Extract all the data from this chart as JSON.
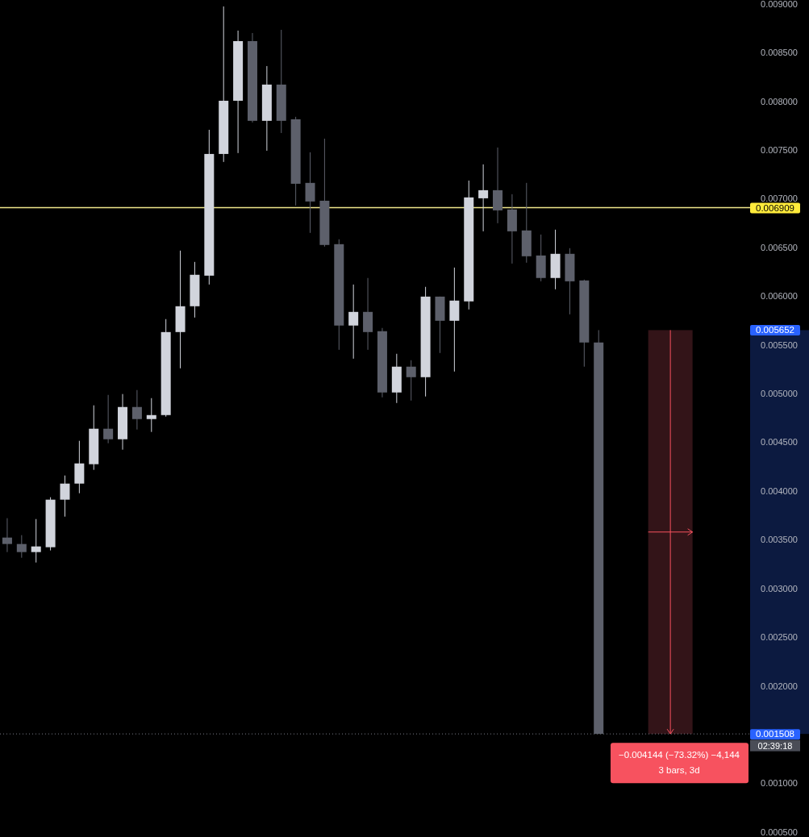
{
  "chart_data": {
    "type": "candlestick",
    "categories": [
      null,
      null,
      null,
      null,
      null,
      null,
      null,
      null,
      null,
      null,
      null,
      null,
      null,
      null,
      null,
      null,
      null,
      null,
      null,
      null,
      null,
      null,
      null,
      null,
      null,
      null,
      null,
      null,
      null,
      null,
      null,
      null,
      null,
      null,
      null,
      null,
      null,
      null,
      null,
      null,
      null,
      null,
      null,
      null,
      null,
      null,
      null,
      null,
      null,
      null,
      null,
      null
    ],
    "ohlc": [
      [
        0.003523,
        0.003722,
        0.003374,
        0.003457
      ],
      [
        0.003457,
        0.003548,
        0.003316,
        0.003374
      ],
      [
        0.003374,
        0.003713,
        0.003267,
        0.003432
      ],
      [
        0.003424,
        0.003937,
        0.003391,
        0.003912
      ],
      [
        0.003912,
        0.00416,
        0.003738,
        0.004077
      ],
      [
        0.004077,
        0.004516,
        0.003978,
        0.004284
      ],
      [
        0.004276,
        0.00488,
        0.004218,
        0.00464
      ],
      [
        0.00464,
        0.004987,
        0.004491,
        0.004532
      ],
      [
        0.004532,
        0.004996,
        0.004425,
        0.004863
      ],
      [
        0.004863,
        0.005037,
        0.004632,
        0.004739
      ],
      [
        0.004739,
        0.004954,
        0.004607,
        0.00478
      ],
      [
        0.00478,
        0.005765,
        0.004764,
        0.005632
      ],
      [
        0.005632,
        0.006468,
        0.00526,
        0.005897
      ],
      [
        0.005897,
        0.006352,
        0.005781,
        0.00622
      ],
      [
        0.006211,
        0.007708,
        0.00612,
        0.00746
      ],
      [
        0.00746,
        0.008974,
        0.007378,
        0.008006
      ],
      [
        0.008006,
        0.008726,
        0.007469,
        0.008618
      ],
      [
        0.008618,
        0.008701,
        0.007783,
        0.0078
      ],
      [
        0.0078,
        0.008362,
        0.007493,
        0.008172
      ],
      [
        0.008172,
        0.008734,
        0.007675,
        0.0078
      ],
      [
        0.007816,
        0.007841,
        0.006931,
        0.007154
      ],
      [
        0.007163,
        0.007477,
        0.00665,
        0.006972
      ],
      [
        0.00698,
        0.007617,
        0.006509,
        0.006526
      ],
      [
        0.006534,
        0.006584,
        0.00545,
        0.005699
      ],
      [
        0.005699,
        0.00612,
        0.005359,
        0.005839
      ],
      [
        0.005839,
        0.006187,
        0.00545,
        0.005632
      ],
      [
        0.005641,
        0.005674,
        0.004962,
        0.005012
      ],
      [
        0.005012,
        0.005409,
        0.004904,
        0.005277
      ],
      [
        0.005277,
        0.005343,
        0.004929,
        0.005169
      ],
      [
        0.005169,
        0.006096,
        0.004971,
        0.005996
      ],
      [
        0.005996,
        0.005996,
        0.005417,
        0.005748
      ],
      [
        0.005748,
        0.006294,
        0.005227,
        0.005955
      ],
      [
        0.005947,
        0.007187,
        0.005864,
        0.007014
      ],
      [
        0.007005,
        0.007353,
        0.006666,
        0.007088
      ],
      [
        0.007088,
        0.007526,
        0.006749,
        0.006881
      ],
      [
        0.00689,
        0.007047,
        0.006335,
        0.006666
      ],
      [
        0.006675,
        0.007163,
        0.006344,
        0.00641
      ],
      [
        0.006418,
        0.006633,
        0.006153,
        0.006187
      ],
      [
        0.006187,
        0.006683,
        0.006071,
        0.006435
      ],
      [
        0.006435,
        0.006493,
        0.005814,
        0.006153
      ],
      [
        0.006162,
        0.00617,
        0.005277,
        0.005525
      ],
      [
        0.005525,
        0.005652,
        0.001508,
        0.001508
      ],
      null,
      null,
      null,
      null,
      null,
      null,
      null,
      null,
      null,
      null
    ],
    "colors": [
      "#5d606b",
      "#5d606b",
      "#d1d4dc",
      "#d1d4dc",
      "#d1d4dc",
      "#d1d4dc",
      "#d1d4dc",
      "#5d606b",
      "#d1d4dc",
      "#5d606b",
      "#d1d4dc",
      "#d1d4dc",
      "#d1d4dc",
      "#d1d4dc",
      "#d1d4dc",
      "#d1d4dc",
      "#d1d4dc",
      "#5d606b",
      "#d1d4dc",
      "#5d606b",
      "#5d606b",
      "#5d606b",
      "#5d606b",
      "#5d606b",
      "#d1d4dc",
      "#5d606b",
      "#5d606b",
      "#d1d4dc",
      "#5d606b",
      "#d1d4dc",
      "#5d606b",
      "#d1d4dc",
      "#d1d4dc",
      "#d1d4dc",
      "#5d606b",
      "#5d606b",
      "#5d606b",
      "#5d606b",
      "#d1d4dc",
      "#5d606b",
      "#5d606b",
      "#5d606b",
      null,
      null,
      null,
      null,
      null,
      null,
      null,
      null,
      null,
      null
    ],
    "ylim": [
      0.00045,
      0.00904
    ],
    "yticks": [
      {
        "value": 0.0005,
        "label": "0.000500"
      },
      {
        "value": 0.001,
        "label": "0.001000"
      },
      {
        "value": 0.002,
        "label": "0.002000"
      },
      {
        "value": 0.0025,
        "label": "0.002500"
      },
      {
        "value": 0.003,
        "label": "0.003000"
      },
      {
        "value": 0.0035,
        "label": "0.003500"
      },
      {
        "value": 0.004,
        "label": "0.004000"
      },
      {
        "value": 0.0045,
        "label": "0.004500"
      },
      {
        "value": 0.005,
        "label": "0.005000"
      },
      {
        "value": 0.0055,
        "label": "0.005500"
      },
      {
        "value": 0.006,
        "label": "0.006000"
      },
      {
        "value": 0.0065,
        "label": "0.006500"
      },
      {
        "value": 0.007,
        "label": "0.007000"
      },
      {
        "value": 0.0075,
        "label": "0.007500"
      },
      {
        "value": 0.008,
        "label": "0.008000"
      },
      {
        "value": 0.0085,
        "label": "0.008500"
      },
      {
        "value": 0.009,
        "label": "0.009000"
      }
    ],
    "tick_labels": "y",
    "grid": false,
    "ref_lines": [
      {
        "axis": "y",
        "value": 0.006909,
        "label": "0.006909",
        "color": "#f0e68c",
        "line_style": "solid"
      },
      {
        "axis": "y",
        "value": 0.001508,
        "label": "0.001508",
        "color": "#787b86",
        "line_style": "dotted"
      }
    ],
    "bands": [
      {
        "axis": "y",
        "from": 0.001508,
        "to": 0.005652,
        "color": "#331418"
      }
    ],
    "annotations": [
      "−0.004144 (−73.32%) −4,144",
      "3 bars, 3d",
      "02:39:18",
      "0.005652"
    ]
  }
}
